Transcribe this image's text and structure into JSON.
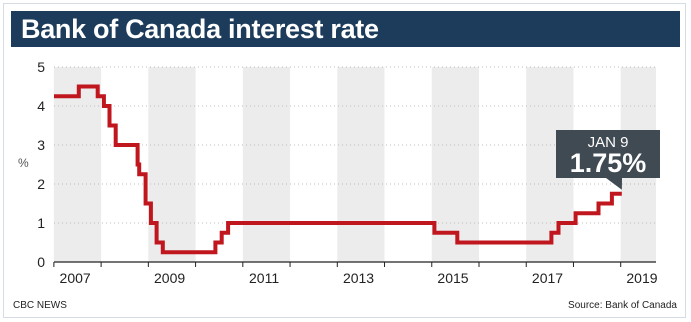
{
  "title": "Bank of Canada interest rate",
  "credit": "CBC NEWS",
  "source": "Source: Bank of Canada",
  "colors": {
    "title_bg": "#1d3c5c",
    "line": "#c0161e",
    "shade": "#ececec",
    "callout_bg": "#3f4a52"
  },
  "chart_data": {
    "type": "line",
    "title": "Bank of Canada interest rate",
    "ylabel": "%",
    "xlabel": "",
    "ylim": [
      0,
      5
    ],
    "yticks": [
      0,
      1,
      2,
      3,
      4,
      5
    ],
    "xlim": [
      "2007-01-01",
      "2019-09-30"
    ],
    "xticks": [
      "2007",
      "2009",
      "2011",
      "2013",
      "2015",
      "2017",
      "2019"
    ],
    "grid": true,
    "legend": "none",
    "callout": {
      "date": "JAN 9",
      "value": "1.75%"
    },
    "series": [
      {
        "step": true,
        "points": [
          [
            "2007-01-01",
            4.25
          ],
          [
            "2007-07-10",
            4.5
          ],
          [
            "2007-12-04",
            4.25
          ],
          [
            "2008-01-22",
            4.0
          ],
          [
            "2008-03-04",
            3.5
          ],
          [
            "2008-04-22",
            3.0
          ],
          [
            "2008-10-08",
            2.5
          ],
          [
            "2008-10-21",
            2.25
          ],
          [
            "2008-12-09",
            1.5
          ],
          [
            "2009-01-20",
            1.0
          ],
          [
            "2009-03-03",
            0.5
          ],
          [
            "2009-04-21",
            0.25
          ],
          [
            "2010-06-01",
            0.5
          ],
          [
            "2010-07-20",
            0.75
          ],
          [
            "2010-09-08",
            1.0
          ],
          [
            "2015-01-21",
            0.75
          ],
          [
            "2015-07-15",
            0.5
          ],
          [
            "2017-07-12",
            0.75
          ],
          [
            "2017-09-06",
            1.0
          ],
          [
            "2018-01-17",
            1.25
          ],
          [
            "2018-07-11",
            1.5
          ],
          [
            "2018-10-24",
            1.75
          ],
          [
            "2019-01-09",
            1.75
          ]
        ]
      }
    ]
  }
}
